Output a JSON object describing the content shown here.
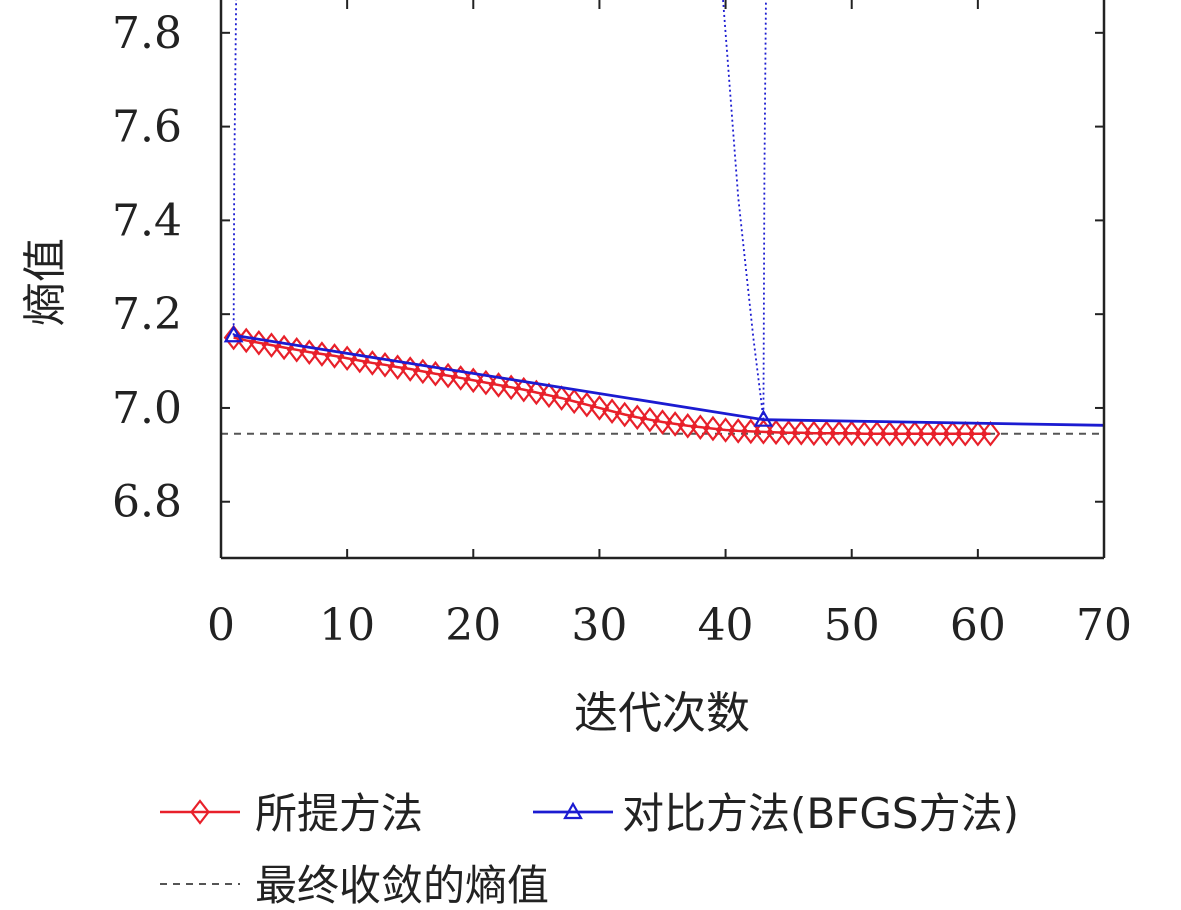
{
  "chart_data": {
    "type": "line",
    "xlabel": "迭代次数",
    "ylabel": "熵值",
    "xlim": [
      0,
      70
    ],
    "ylim": [
      6.68,
      7.87
    ],
    "xticks": [
      0,
      10,
      20,
      30,
      40,
      50,
      60,
      70
    ],
    "yticks": [
      6.8,
      7.0,
      7.2,
      7.4,
      7.6,
      7.8
    ],
    "xtick_labels": [
      "0",
      "10",
      "20",
      "30",
      "40",
      "50",
      "60",
      "70"
    ],
    "ytick_labels": [
      "6.8",
      "7.0",
      "7.2",
      "7.4",
      "7.6",
      "7.8"
    ],
    "grid": false,
    "legend_position": "bottom",
    "series": [
      {
        "name": "所提方法",
        "color": "#e8202a",
        "marker": "diamond",
        "x": [
          1,
          2,
          3,
          4,
          5,
          6,
          7,
          8,
          9,
          10,
          11,
          12,
          13,
          14,
          15,
          16,
          17,
          18,
          19,
          20,
          21,
          22,
          23,
          24,
          25,
          26,
          27,
          28,
          29,
          30,
          31,
          32,
          33,
          34,
          35,
          36,
          37,
          38,
          39,
          40,
          41,
          42,
          43,
          44,
          45,
          46,
          47,
          48,
          49,
          50,
          51,
          52,
          53,
          54,
          55,
          56,
          57,
          58,
          59,
          60,
          61
        ],
        "y": [
          7.15,
          7.144,
          7.139,
          7.134,
          7.129,
          7.124,
          7.119,
          7.115,
          7.111,
          7.106,
          7.101,
          7.096,
          7.092,
          7.087,
          7.083,
          7.078,
          7.073,
          7.069,
          7.064,
          7.059,
          7.054,
          7.049,
          7.044,
          7.039,
          7.033,
          7.027,
          7.021,
          7.014,
          7.007,
          7.0,
          6.993,
          6.986,
          6.98,
          6.975,
          6.97,
          6.966,
          6.962,
          6.959,
          6.956,
          6.953,
          6.951,
          6.95,
          6.949,
          6.948,
          6.947,
          6.947,
          6.946,
          6.946,
          6.946,
          6.946,
          6.945,
          6.945,
          6.945,
          6.945,
          6.945,
          6.945,
          6.945,
          6.945,
          6.945,
          6.945,
          6.945
        ]
      },
      {
        "name": "对比方法(BFGS方法)",
        "color": "#1b1bd1",
        "marker": "triangle",
        "x": [
          1,
          43,
          70
        ],
        "y": [
          7.155,
          6.975,
          6.963
        ],
        "marker_x": [
          1,
          43
        ]
      },
      {
        "name": "最终收敛的熵值",
        "color": "#555555",
        "style": "dashed",
        "x": [
          0,
          70
        ],
        "y": [
          6.945,
          6.945
        ]
      }
    ],
    "dotted_excursions": [
      {
        "color": "#1b1bd1",
        "x": [
          1,
          1.05,
          1.2
        ],
        "y": [
          7.155,
          7.5,
          7.87
        ]
      },
      {
        "color": "#1b1bd1",
        "x": [
          39.8,
          41.0,
          42.2,
          42.8,
          43.0
        ],
        "y": [
          7.87,
          7.45,
          7.15,
          7.02,
          6.975
        ]
      },
      {
        "color": "#1b1bd1",
        "x": [
          43.0,
          43.08,
          43.2
        ],
        "y": [
          6.975,
          7.5,
          7.87
        ]
      }
    ]
  }
}
